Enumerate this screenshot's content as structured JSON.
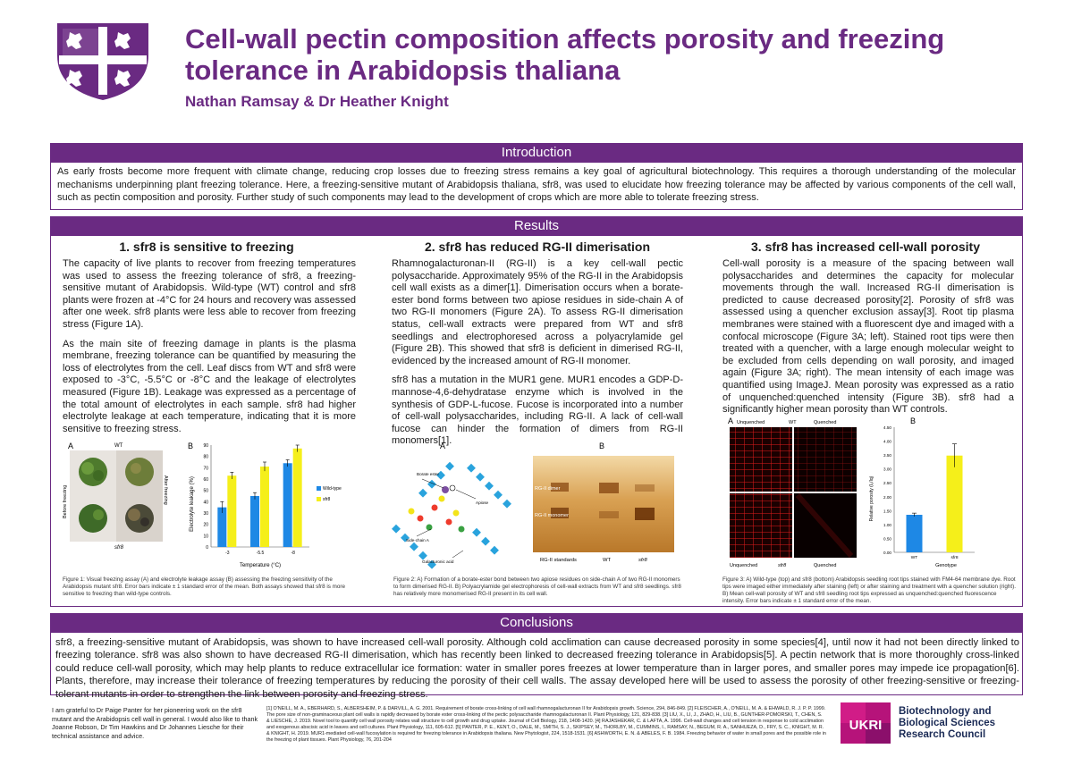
{
  "header": {
    "title": "Cell-wall pectin composition affects porosity and freezing tolerance in Arabidopsis thaliana",
    "authors": "Nathan Ramsay & Dr Heather Knight"
  },
  "introduction": {
    "heading": "Introduction",
    "text": "As early frosts become more frequent with climate change, reducing crop losses due to freezing stress remains a key goal of agricultural biotechnology. This requires a thorough understanding of the molecular mechanisms underpinning plant freezing tolerance. Here, a freezing-sensitive mutant of Arabidopsis thaliana, sfr8, was used to elucidate how freezing tolerance may be affected by various components of the cell wall, such as pectin composition and porosity. Further study of such components may lead to the development of crops which are more able to tolerate freezing stress."
  },
  "results": {
    "heading": "Results",
    "col1": {
      "title": "1. sfr8 is sensitive to freezing",
      "p1": "The capacity of live plants to recover from freezing temperatures was used to assess the freezing tolerance of sfr8, a freezing-sensitive mutant of Arabidopsis. Wild-type (WT) control and sfr8 plants were frozen at -4°C for 24 hours and recovery was assessed after one week. sfr8 plants were less able to recover from freezing stress (Figure 1A).",
      "p2": "As the main site of freezing damage in plants is the plasma membrane, freezing tolerance can be quantified by measuring the loss of electrolytes from the cell. Leaf discs from WT and sfr8 were exposed to -3°C, -5.5°C or -8°C and the leakage of electrolytes measured (Figure 1B). Leakage was expressed as a percentage of the total amount of electrolytes in each sample. sfr8 had higher electrolyte leakage at each temperature, indicating that it is more sensitive to freezing stress.",
      "fig": {
        "label_a": "A",
        "label_b": "B",
        "wt": "WT",
        "sfr8": "sfr8",
        "before": "Before freezing",
        "after": "After freezing",
        "ylabel": "Electrolyte leakage (%)",
        "xlabel": "Temperature (°C)",
        "legend_wt": "Wild-type",
        "legend_sfr8": "sfr8"
      },
      "caption": "Figure 1: Visual freezing assay (A) and electrolyte leakage assay (B) assessing the freezing sensitivity of the Arabidopsis mutant sfr8. Error bars indicate ± 1 standard error of the mean. Both assays showed that sfr8 is more sensitive to freezing than wild-type controls."
    },
    "col2": {
      "title": "2. sfr8 has reduced RG-II dimerisation",
      "p1": "Rhamnogalacturonan-II (RG-II) is a key cell-wall pectic polysaccharide. Approximately 95% of the RG-II in the Arabidopsis cell wall exists as a dimer[1]. Dimerisation occurs when a borate-ester bond forms between two apiose residues in side-chain A of two RG-II monomers (Figure 2A). To assess RG-II dimerisation status, cell-wall extracts were prepared from WT and sfr8 seedlings and electrophoresed across a polyacrylamide gel (Figure 2B). This showed that sfr8 is deficient in dimerised RG-II, evidenced by the increased amount of RG-II monomer.",
      "p2": "sfr8 has a mutation in the MUR1 gene. MUR1 encodes a GDP-D-mannose-4,6-dehydratase enzyme which is involved in the synthesis of GDP-L-fucose. Fucose is incorporated into a number of cell-wall polysaccharides, including RG-II. A lack of cell-wall fucose can hinder the formation of dimers from RG-II monomers[1].",
      "fig": {
        "label_a": "A",
        "label_b": "B",
        "borate": "Borate ester",
        "apiose": "Apiose",
        "side_chain": "Side-chain A",
        "galacturonic": "Galacturonic acid",
        "dimer": "RG-II dimer",
        "monomer": "RG-II monomer",
        "lane_std": "RG-II standards",
        "lane_wt": "WT",
        "lane_sfr8": "sfr8"
      },
      "caption": "Figure 2: A) Formation of a borate-ester bond between two apiose residues on side-chain A of two RG-II monomers to form dimerised RG-II. B) Polyacrylamide gel electrophoresis of cell-wall extracts from WT and sfr8 seedlings. sfr8 has relatively more monomerised RG-II present in its cell wall."
    },
    "col3": {
      "title": "3. sfr8 has increased cell-wall porosity",
      "p1": "Cell-wall porosity is a measure of the spacing between wall polysaccharides and determines the capacity for molecular movements through the wall. Increased RG-II dimerisation is predicted to cause decreased porosity[2]. Porosity of sfr8 was assessed using a quencher exclusion assay[3]. Root tip plasma membranes were stained with a fluorescent dye and imaged with a confocal microscope (Figure 3A; left). Stained root tips were then treated with a quencher, with a large enough molecular weight to be excluded from cells depending on wall porosity, and imaged again (Figure 3A; right). The mean intensity of each image was quantified using ImageJ. Mean porosity was expressed as a ratio of unquenched:quenched intensity (Figure 3B). sfr8 had a significantly higher mean porosity than WT controls.",
      "fig": {
        "label_a": "A",
        "label_b": "B",
        "unq": "Unquenched",
        "q": "Quenched",
        "wt": "WT",
        "sfr8": "sfr8",
        "ylabel": "Relative porosity (Iᵤ/Iq)",
        "xlabel": "Genotype"
      },
      "caption": "Figure 3: A) Wild-type (top) and sfr8 (bottom) Arabidopsis seedling root tips stained with FM4-64 membrane dye. Root tips were imaged either immediately after staining (left) or after staining and treatment with a quencher solution (right). B) Mean cell-wall porosity of WT and sfr8 seedling root tips expressed as unquenched:quenched fluorescence intensity. Error bars indicate ± 1 standard error of the mean."
    }
  },
  "conclusions": {
    "heading": "Conclusions",
    "text": "sfr8, a freezing-sensitive mutant of Arabidopsis, was shown to have increased cell-wall porosity. Although cold acclimation can cause decreased porosity in some species[4], until now it had not been directly linked to freezing tolerance. sfr8 was also shown to have decreased RG-II dimerisation, which has recently been linked to decreased freezing tolerance in Arabidopsis[5]. A pectin network that is more thoroughly cross-linked could reduce cell-wall porosity, which may help plants to reduce extracellular ice formation: water in smaller pores freezes at lower temperature than in larger pores, and smaller pores may impede ice propagation[6]. Plants, therefore, may increase their tolerance of freezing temperatures by reducing the porosity of their cell walls. The assay developed here will be used to assess the porosity of other freezing-sensitive or freezing-tolerant mutants in order to strengthen the link between porosity and freezing stress."
  },
  "footer": {
    "acknowledgements": "I am grateful to Dr Paige Panter for her pioneering work on the sfr8 mutant and the Arabidopsis cell wall in general. I would also like to thank Joanne Robson, Dr Tim Hawkins and Dr Johannes Liesche for their technical assistance and advice.",
    "references": "[1] O'NEILL, M. A., EBERHARD, S., ALBERSHEIM, P. & DARVILL, A. G. 2001. Requirement of borate cross-linking of cell wall rhamnogalacturonan II for Arabidopsis growth. Science, 294, 846-849. [2] FLEISCHER, A., O'NEILL, M. A. & EHWALD, R. J. P. P. 1999. The pore size of non-graminaceous plant cell walls is rapidly decreased by borate ester cross-linking of the pectic polysaccharide rhamnogalacturonan II. Plant Physiology, 121, 829-838. [3] LIU, X., LI, J., ZHAO, H., LIU, B., GUNTHER-POMORSKI, T., CHEN, S. & LIESCHE, J. 2019. Novel tool to quantify cell wall porosity relates wall structure to cell growth and drug uptake. Journal of Cell Biology, 218, 1408-1420. [4] RAJASHEKAR, C. & LAFTA, A. 1996. Cell-wall changes and cell tension in response to cold acclimation and exogenous abscisic acid in leaves and cell cultures. Plant Physiology, 111, 605-612. [5] PANTER, P. E., KENT, O., DALE, M., SMITH, S. J., SKIPSEY, M., THORLBY, M., CUMMINS, I., RAMSAY, N., BEGUM, R. A., SANHUEZA, D., FRY, S. C., KNIGHT, M. R. & KNIGHT, H. 2019. MUR1-mediated cell-wall fucosylation is required for freezing tolerance in Arabidopsis thaliana. New Phytologist, 224, 1518-1531. [6] ASHWORTH, E. N. & ABELES, F. B. 1984. Freezing behavior of water in small pores and the possible role in the freezing of plant tissues. Plant Physiology, 76, 201-204",
    "logo_text": "UKRI",
    "funder_line1": "Biotechnology and",
    "funder_line2": "Biological Sciences",
    "funder_line3": "Research Council"
  },
  "chart_data": [
    {
      "type": "bar",
      "categories": [
        "-3",
        "-5.5",
        "-8"
      ],
      "series": [
        {
          "name": "Wild-type",
          "values": [
            35,
            45,
            74
          ],
          "errors": [
            5,
            3,
            3
          ],
          "color": "#1e88e5"
        },
        {
          "name": "sfr8",
          "values": [
            63,
            71,
            87
          ],
          "errors": [
            3,
            4,
            3
          ],
          "color": "#f5ef1a"
        }
      ],
      "xlabel": "Temperature (°C)",
      "ylabel": "Electrolyte leakage (%)",
      "ylim": [
        0,
        90
      ],
      "yticks": [
        0,
        10,
        20,
        30,
        40,
        50,
        60,
        70,
        80,
        90
      ],
      "legend": "right"
    },
    {
      "type": "bar",
      "categories": [
        "WT",
        "sfr8"
      ],
      "values": [
        1.35,
        3.48
      ],
      "errors": [
        0.06,
        0.42
      ],
      "colors": [
        "#1e88e5",
        "#f5ef1a"
      ],
      "xlabel": "Genotype",
      "ylabel": "Relative porosity (Iᵤ/Iq)",
      "ylim": [
        0,
        4.5
      ],
      "yticks": [
        "0.00",
        "0.50",
        "1.00",
        "1.50",
        "2.00",
        "2.50",
        "3.00",
        "3.50",
        "4.00",
        "4.50"
      ]
    }
  ],
  "colors": {
    "brand_purple": "#6a2a82",
    "wt_bar": "#1e88e5",
    "sfr8_bar": "#f5ef1a"
  }
}
